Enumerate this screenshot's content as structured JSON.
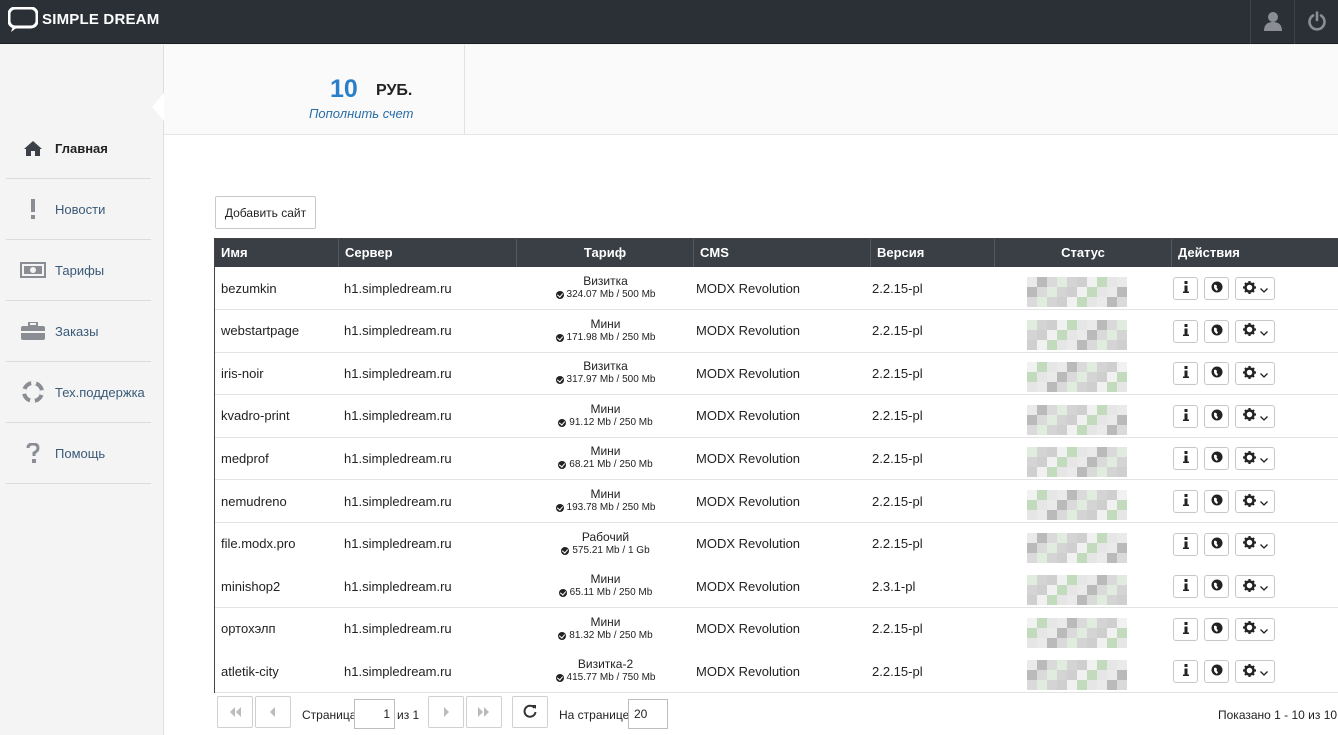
{
  "app": {
    "logo_text": "SIMPLE DREAM",
    "user_icon": "user-icon",
    "power_icon": "power-icon"
  },
  "sidebar": {
    "items": [
      {
        "label": "Главная",
        "icon": "home-icon",
        "active": true
      },
      {
        "label": "Новости",
        "icon": "exclamation-icon",
        "active": false
      },
      {
        "label": "Тарифы",
        "icon": "money-icon",
        "active": false
      },
      {
        "label": "Заказы",
        "icon": "briefcase-icon",
        "active": false
      },
      {
        "label": "Тех.поддержка",
        "icon": "lifebuoy-icon",
        "active": false
      },
      {
        "label": "Помощь",
        "icon": "question-icon",
        "active": false
      }
    ]
  },
  "balance": {
    "amount": "10",
    "currency": "РУБ.",
    "topup_link": "Пополнить счет"
  },
  "toolbar": {
    "add_site_label": "Добавить сайт"
  },
  "table": {
    "columns": [
      "Имя",
      "Сервер",
      "Тариф",
      "CMS",
      "Версия",
      "Статус",
      "Действия"
    ],
    "rows": [
      {
        "name": "bezumkin",
        "server": "h1.simpledream.ru",
        "tariff": "Визитка",
        "usage": "324.07 Mb / 500 Mb",
        "cms": "MODX Revolution",
        "version": "2.2.15-pl"
      },
      {
        "name": "webstartpage",
        "server": "h1.simpledream.ru",
        "tariff": "Мини",
        "usage": "171.98 Mb / 250 Mb",
        "cms": "MODX Revolution",
        "version": "2.2.15-pl"
      },
      {
        "name": "iris-noir",
        "server": "h1.simpledream.ru",
        "tariff": "Визитка",
        "usage": "317.97 Mb / 500 Mb",
        "cms": "MODX Revolution",
        "version": "2.2.15-pl"
      },
      {
        "name": "kvadro-print",
        "server": "h1.simpledream.ru",
        "tariff": "Мини",
        "usage": "91.12 Mb / 250 Mb",
        "cms": "MODX Revolution",
        "version": "2.2.15-pl"
      },
      {
        "name": "medprof",
        "server": "h1.simpledream.ru",
        "tariff": "Мини",
        "usage": "68.21 Mb / 250 Mb",
        "cms": "MODX Revolution",
        "version": "2.2.15-pl"
      },
      {
        "name": "nemudreno",
        "server": "h1.simpledream.ru",
        "tariff": "Мини",
        "usage": "193.78 Mb / 250 Mb",
        "cms": "MODX Revolution",
        "version": "2.2.15-pl"
      },
      {
        "name": "file.modx.pro",
        "server": "h1.simpledream.ru",
        "tariff": "Рабочий",
        "usage": "575.21 Mb / 1 Gb",
        "cms": "MODX Revolution",
        "version": "2.2.15-pl"
      },
      {
        "name": "minishop2",
        "server": "h1.simpledream.ru",
        "tariff": "Мини",
        "usage": "65.11 Mb / 250 Mb",
        "cms": "MODX Revolution",
        "version": "2.3.1-pl"
      },
      {
        "name": "ортохэлп",
        "server": "h1.simpledream.ru",
        "tariff": "Мини",
        "usage": "81.32 Mb / 250 Mb",
        "cms": "MODX Revolution",
        "version": "2.2.15-pl"
      },
      {
        "name": "atletik-city",
        "server": "h1.simpledream.ru",
        "tariff": "Визитка-2",
        "usage": "415.77 Mb / 750 Mb",
        "cms": "MODX Revolution",
        "version": "2.2.15-pl"
      }
    ]
  },
  "pager": {
    "page_label": "Страница",
    "page_value": "1",
    "of_label": "из 1",
    "per_page_label": "На странице:",
    "per_page_value": "20",
    "summary": "Показано 1 - 10 из 10"
  },
  "colors": {
    "topbar": "#2b2f36",
    "accent": "#2a7fc9",
    "table_header": "#3a3f45"
  }
}
